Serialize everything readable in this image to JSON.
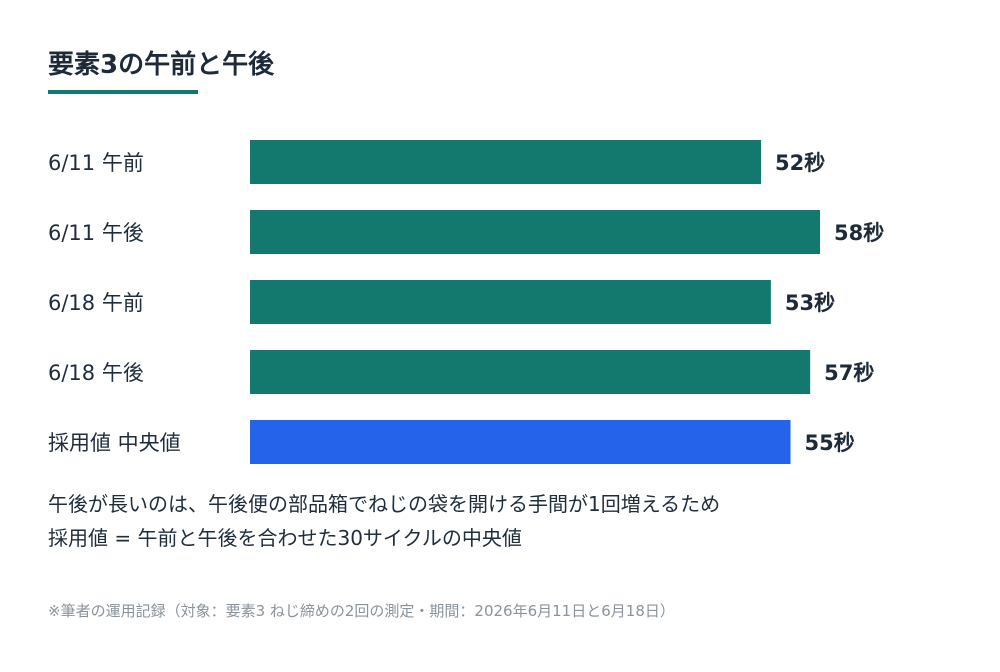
{
  "title": "要素3の午前と午後",
  "colors": {
    "primary": "#13796f",
    "highlight": "#2563eb",
    "value_text": "#1e2a3a"
  },
  "chart_data": {
    "type": "bar",
    "orientation": "horizontal",
    "categories": [
      "6/11 午前",
      "6/11 午後",
      "6/18 午前",
      "6/18 午後",
      "採用値 中央値"
    ],
    "values": [
      52,
      58,
      53,
      57,
      55
    ],
    "value_labels": [
      "52秒",
      "58秒",
      "53秒",
      "57秒",
      "55秒"
    ],
    "highlight_index": 4,
    "unit": "秒",
    "xlim": [
      0,
      58
    ],
    "grid": false,
    "legend": "none"
  },
  "notes": {
    "line1": "午後が長いのは、午後便の部品箱でねじの袋を開ける手間が1回増えるため",
    "line2": "採用値 = 午前と午後を合わせた30サイクルの中央値"
  },
  "footnote": "※筆者の運用記録（対象：要素3 ねじ締めの2回の測定・期間：2026年6月11日と6月18日）"
}
